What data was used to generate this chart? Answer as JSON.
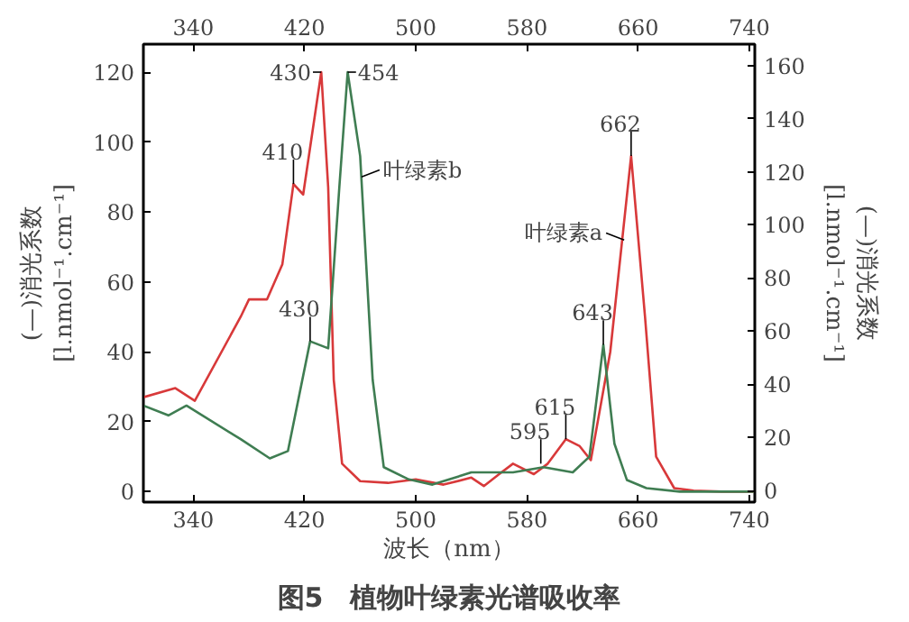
{
  "chart_data": {
    "type": "line",
    "title": "图5　植物叶绿素光谱吸收率",
    "xlabel": "波长（nm）",
    "ylabel": "(—)消光系数\n[l.nmol⁻¹.cm⁻¹]",
    "y2label": "(—)消光系数\n[l.nmol⁻¹.cm⁻¹]",
    "xlim": [
      304,
      744
    ],
    "xticks": [
      340,
      420,
      500,
      580,
      660,
      740
    ],
    "x2lim": [
      304,
      744
    ],
    "x2ticks": [
      340,
      420,
      500,
      580,
      660,
      740
    ],
    "ylim": [
      -3,
      128
    ],
    "yticks": [
      0,
      20,
      40,
      60,
      80,
      100,
      120
    ],
    "y2lim": [
      -4.3,
      168
    ],
    "y2ticks": [
      0,
      20,
      40,
      60,
      80,
      100,
      120,
      140,
      160
    ],
    "grid": false,
    "marker": "none",
    "line_style": "solid",
    "series": [
      {
        "color": "#d8393a",
        "x": [
          304,
          327,
          341,
          374,
          380,
          393,
          404,
          412,
          419,
          432,
          437,
          441,
          447,
          460,
          480,
          500,
          520,
          540,
          549,
          560,
          570,
          585,
          595,
          608,
          618,
          626,
          640,
          655,
          665,
          673,
          686,
          700,
          720,
          744
        ],
        "values": [
          27,
          29.6,
          26,
          50,
          55,
          55,
          65,
          88,
          85,
          120,
          87,
          32,
          8,
          3,
          2.5,
          3.5,
          2,
          4,
          1.6,
          5,
          8,
          5,
          8,
          15,
          13,
          9,
          40,
          96,
          50,
          10,
          1,
          0.3,
          0,
          0
        ]
      },
      {
        "color": "#3f7d52",
        "x": [
          304,
          322,
          335,
          374,
          395,
          408,
          424,
          437,
          445,
          451,
          460,
          469,
          477,
          495,
          512,
          540,
          570,
          592,
          613,
          625,
          635,
          643,
          652,
          666,
          690,
          744
        ],
        "values": [
          24.6,
          21.8,
          24.6,
          15,
          9.5,
          11.6,
          43,
          41,
          87,
          120,
          96,
          32,
          7,
          3.5,
          2,
          5.5,
          5.5,
          7,
          5.5,
          10,
          42,
          13.7,
          3.3,
          1,
          0,
          0
        ]
      }
    ],
    "annotations": [
      {
        "text": "430",
        "x": 432,
        "y": 120
      },
      {
        "text": "410",
        "x": 412,
        "y": 88
      },
      {
        "text": "430",
        "x": 424,
        "y": 43
      },
      {
        "text": "454",
        "x": 451,
        "y": 120
      },
      {
        "text": "662",
        "x": 655,
        "y": 96
      },
      {
        "text": "643",
        "x": 635,
        "y": 42
      },
      {
        "text": "615",
        "x": 608,
        "y": 15
      },
      {
        "text": "595",
        "x": 590,
        "y": 8
      },
      {
        "text": "叶绿素b",
        "x": 461,
        "y": 90
      },
      {
        "text": "叶绿素a",
        "x": 650,
        "y": 72
      }
    ]
  }
}
